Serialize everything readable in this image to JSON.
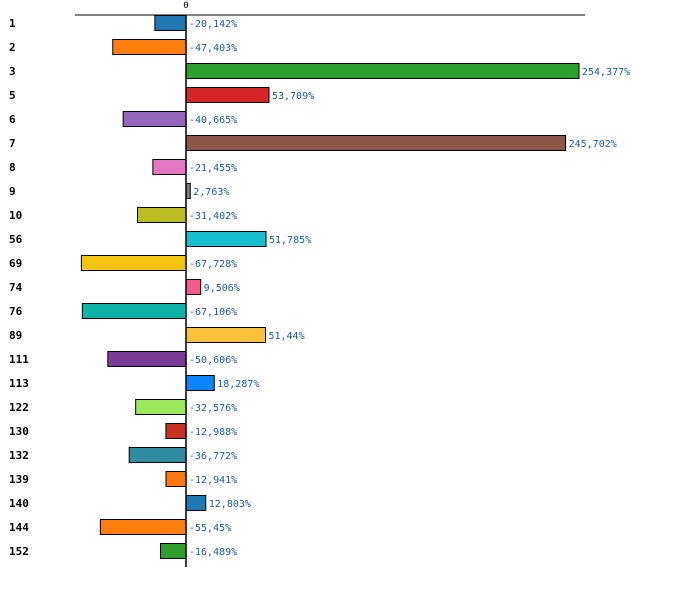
{
  "chart_data": {
    "type": "bar",
    "orientation": "horizontal",
    "categories": [
      "1",
      "2",
      "3",
      "5",
      "6",
      "7",
      "8",
      "9",
      "10",
      "56",
      "69",
      "74",
      "76",
      "89",
      "111",
      "113",
      "122",
      "130",
      "132",
      "139",
      "140",
      "144",
      "152"
    ],
    "values": [
      -20.142,
      -47.403,
      254.377,
      53.709,
      -40.665,
      245.702,
      -21.455,
      2.763,
      -31.402,
      51.785,
      -67.728,
      9.506,
      -67.106,
      51.44,
      -50.606,
      18.287,
      -32.576,
      -12.988,
      -36.772,
      -12.941,
      12.803,
      -55.45,
      -16.489
    ],
    "value_labels": [
      "-20,142%",
      "-47,403%",
      "254,377%",
      "53,709%",
      "-40,665%",
      "245,702%",
      "-21,455%",
      "2,763%",
      "-31,402%",
      "51,785%",
      "-67,728%",
      "9,506%",
      "-67,106%",
      "51,44%",
      "-50,606%",
      "18,287%",
      "-32,576%",
      "-12,988%",
      "-36,772%",
      "-12,941%",
      "12,803%",
      "-55,45%",
      "-16,489%"
    ],
    "colors": [
      "#1f77b4",
      "#ff7f0e",
      "#2ca02c",
      "#d62728",
      "#9467bd",
      "#8c564b",
      "#e377c2",
      "#7f7f7f",
      "#bcbd22",
      "#17becf",
      "#f2c40f",
      "#f25c8c",
      "#0db3a6",
      "#fbc13b",
      "#7b3a96",
      "#0a84ff",
      "#9be85c",
      "#c83220",
      "#2f8ca0",
      "#ff7710",
      "#1f77b4",
      "#ff7f0e",
      "#2ca02c"
    ],
    "zero_tick_label": "0",
    "title": "",
    "xlabel": "",
    "ylabel": "",
    "xlim": [
      -72,
      258
    ],
    "grid": false,
    "legend": "none"
  }
}
